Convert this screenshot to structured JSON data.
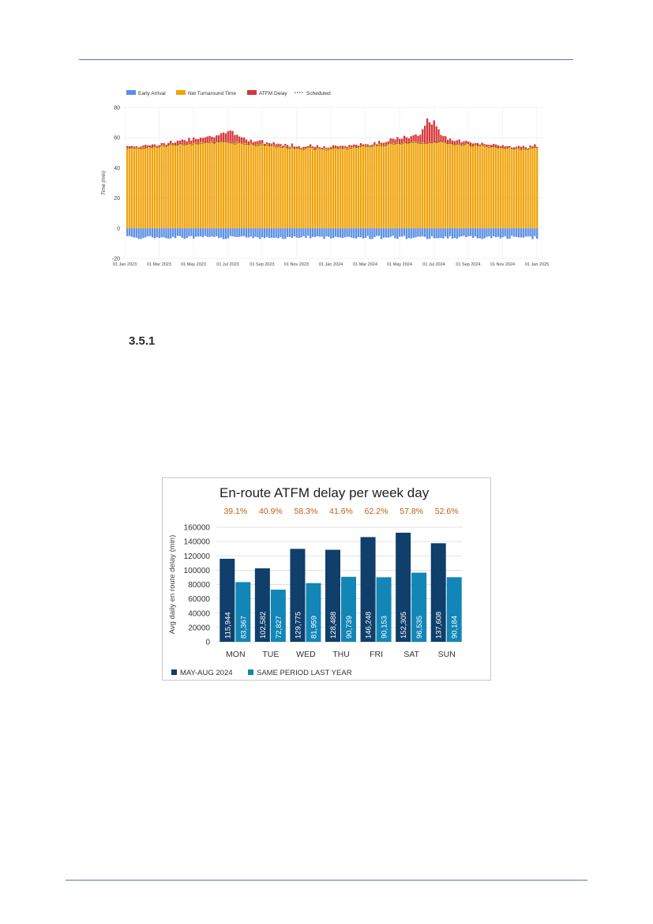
{
  "section": {
    "number": "3.5.1"
  },
  "chart_data": [
    {
      "type": "bar",
      "title": "",
      "xlabel": "",
      "ylabel": "Time (min)",
      "ylim": [
        -20,
        80
      ],
      "yticks": [
        80,
        60,
        40,
        20,
        0,
        -20
      ],
      "xticks": [
        "01 Jan 2023",
        "01 Mar 2023",
        "01 May 2023",
        "01 Jul 2023",
        "01 Sep 2023",
        "01 Nov 2023",
        "01 Jan 2024",
        "01 Mar 2024",
        "01 May 2024",
        "01 Jul 2024",
        "01 Sep 2024",
        "01 Nov 2024",
        "01 Jan 2025"
      ],
      "grid": true,
      "legend_position": "top-left",
      "stacked": true,
      "series": [
        {
          "name": "Early Arrival",
          "color": "#5b8fe6",
          "approx_daily_min": -5
        },
        {
          "name": "Net Turnaround Time",
          "color": "#f0a30a",
          "approx_daily_min": 56
        },
        {
          "name": "ATFM Delay",
          "color": "#d8373a",
          "approx_daily_min": 2,
          "peaks": [
            {
              "x": "Jul 2023",
              "y": 63
            },
            {
              "x": "Jul 2024",
              "y": 73
            }
          ]
        },
        {
          "name": "Scheduled",
          "color": "#222222",
          "style": "dotted",
          "approx_daily_min": 56
        }
      ]
    },
    {
      "type": "bar",
      "title": "En-route ATFM delay per week day",
      "xlabel": "",
      "ylabel": "Avg daily en route delay (min)",
      "ylim": [
        0,
        160000
      ],
      "yticks": [
        "160000",
        "140000",
        "120000",
        "100000",
        "80000",
        "60000",
        "40000",
        "20000",
        "0"
      ],
      "grid": true,
      "legend_position": "bottom-left",
      "categories": [
        "MON",
        "TUE",
        "WED",
        "THU",
        "FRI",
        "SAT",
        "SUN"
      ],
      "percent_labels": [
        "39.1%",
        "40.9%",
        "58.3%",
        "41.6%",
        "62.2%",
        "57.8%",
        "52.6%"
      ],
      "percent_color": "#c55a11",
      "series": [
        {
          "name": "MAY-AUG 2024",
          "color": "#0f3f6a",
          "values": [
            115944,
            102582,
            129775,
            128488,
            146248,
            152305,
            137608
          ],
          "labels": [
            "115,944",
            "102,582",
            "129,775",
            "128,488",
            "146,248",
            "152,305",
            "137,608"
          ]
        },
        {
          "name": "SAME PERIOD LAST YEAR",
          "color": "#1286b6",
          "values": [
            83367,
            72827,
            81959,
            90739,
            90153,
            96535,
            90184
          ],
          "labels": [
            "83,367",
            "72,827",
            "81,959",
            "90,739",
            "90,153",
            "96,535",
            "90,184"
          ]
        }
      ]
    }
  ]
}
